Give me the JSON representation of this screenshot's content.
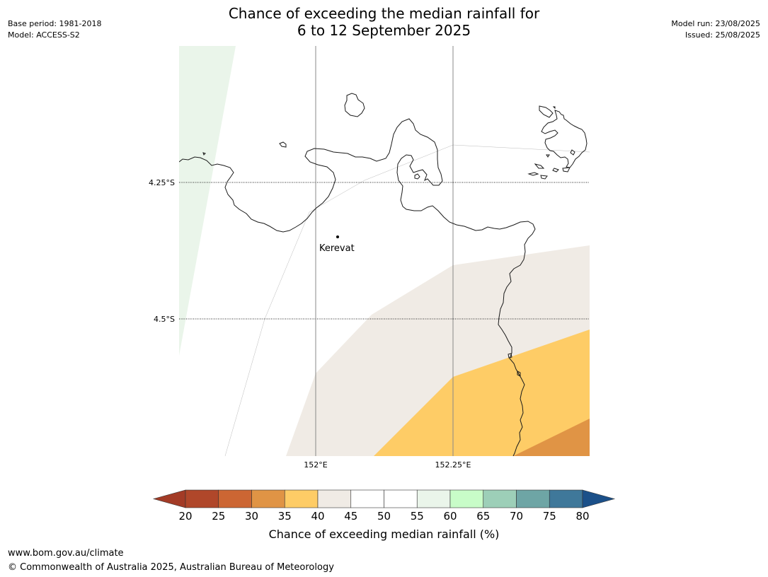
{
  "header": {
    "title_line1": "Chance of exceeding the median rainfall for",
    "title_line2": "6 to 12 September 2025",
    "base_period": "Base period: 1981-2018",
    "model": "Model: ACCESS-S2",
    "model_run": "Model run: 23/08/2025",
    "issued": "Issued: 25/08/2025"
  },
  "map": {
    "lat_labels": [
      "4.25°S",
      "4.5°S"
    ],
    "lon_labels": [
      "152°E",
      "152.25°E"
    ],
    "place": "Kerevat",
    "colors": {
      "band_55_60": "#eaf5ea",
      "band_40_45": "#f0ebe5",
      "band_35_40": "#fecc66",
      "band_30_35": "#e09445",
      "coast": "#1a1a1a",
      "graticule": "#888888"
    }
  },
  "colorbar": {
    "ticks": [
      "20",
      "25",
      "30",
      "35",
      "40",
      "45",
      "50",
      "55",
      "60",
      "65",
      "70",
      "75",
      "80"
    ],
    "colors": [
      "#a33b26",
      "#b0472a",
      "#cc6633",
      "#e09445",
      "#fecc66",
      "#f0ebe5",
      "#ffffff",
      "#ffffff",
      "#eaf5ea",
      "#c8fcc8",
      "#9dcfb8",
      "#6ea5a5",
      "#3f789a",
      "#1b5089"
    ],
    "label": "Chance of exceeding median rainfall (%)"
  },
  "footer": {
    "url": "www.bom.gov.au/climate",
    "copyright": "© Commonwealth of Australia 2025, Australian Bureau of Meteorology"
  }
}
